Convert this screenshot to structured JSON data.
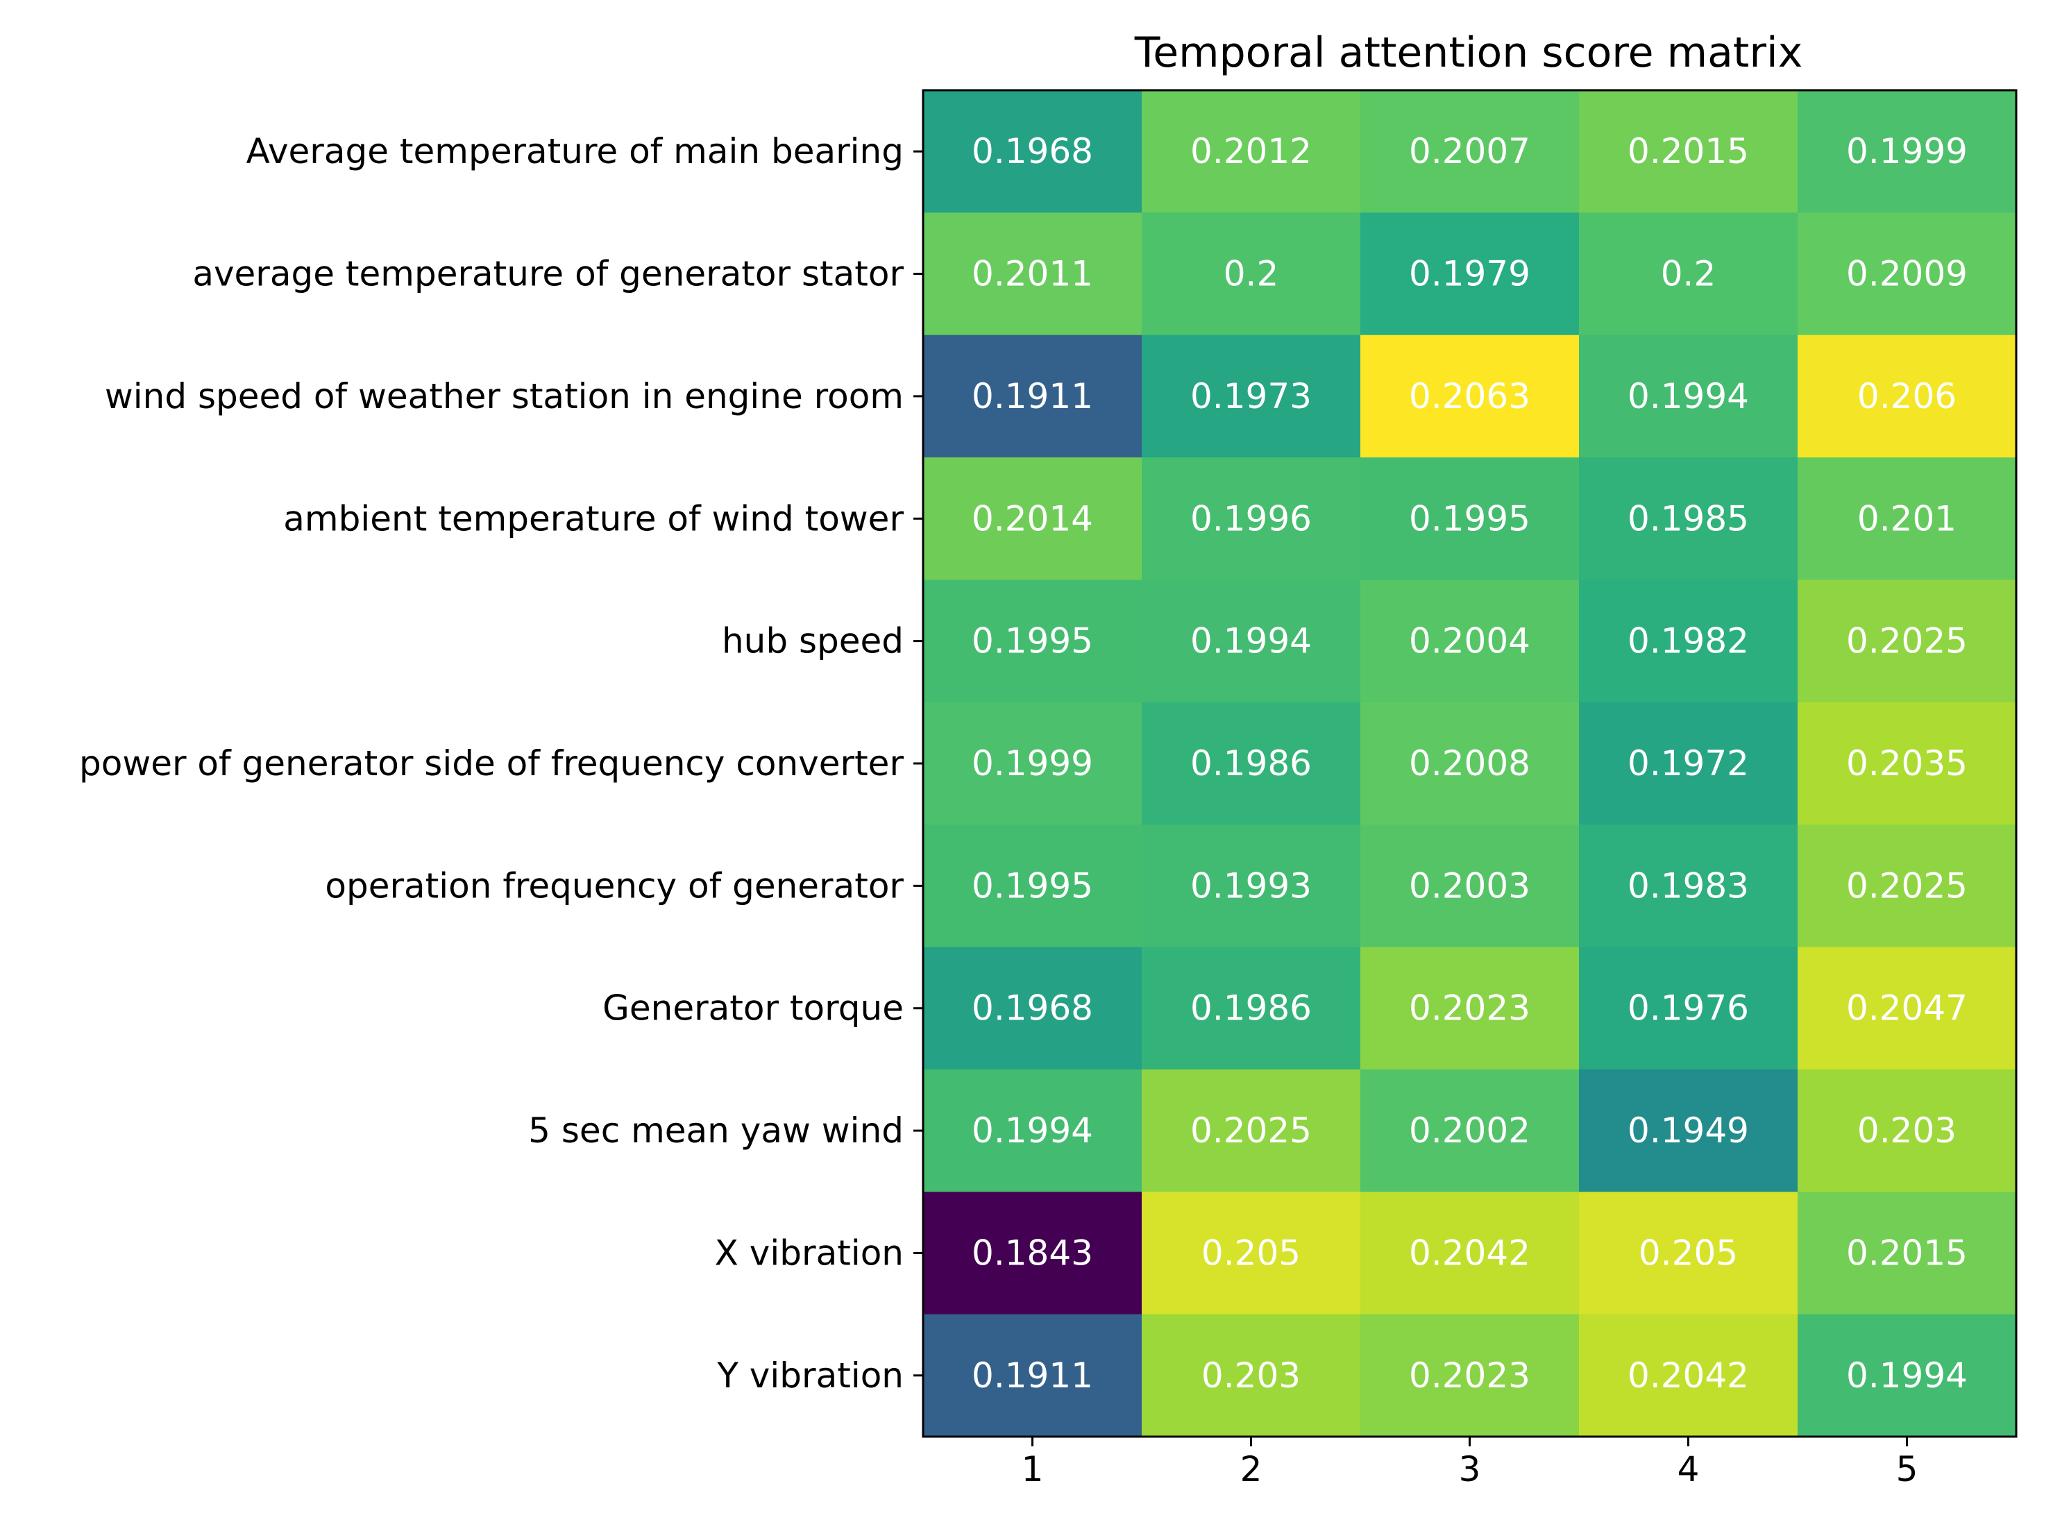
{
  "chart_data": {
    "type": "heatmap",
    "title": "Temporal attention score matrix",
    "xlabel": "",
    "ylabel": "",
    "colormap": "viridis",
    "vmin": 0.1843,
    "vmax": 0.2063,
    "x_categories": [
      "1",
      "2",
      "3",
      "4",
      "5"
    ],
    "y_categories": [
      "Average temperature of main bearing",
      "average temperature of generator stator",
      "wind speed of weather station in engine room",
      "ambient temperature of wind tower",
      "hub speed",
      "power of generator side of frequency converter",
      "operation frequency of generator",
      "Generator torque",
      "5 sec mean yaw wind",
      "X vibration",
      "Y vibration"
    ],
    "values": [
      [
        0.1968,
        0.2012,
        0.2007,
        0.2015,
        0.1999
      ],
      [
        0.2011,
        0.2,
        0.1979,
        0.2,
        0.2009
      ],
      [
        0.1911,
        0.1973,
        0.2063,
        0.1994,
        0.206
      ],
      [
        0.2014,
        0.1996,
        0.1995,
        0.1985,
        0.201
      ],
      [
        0.1995,
        0.1994,
        0.2004,
        0.1982,
        0.2025
      ],
      [
        0.1999,
        0.1986,
        0.2008,
        0.1972,
        0.2035
      ],
      [
        0.1995,
        0.1993,
        0.2003,
        0.1983,
        0.2025
      ],
      [
        0.1968,
        0.1986,
        0.2023,
        0.1976,
        0.2047
      ],
      [
        0.1994,
        0.2025,
        0.2002,
        0.1949,
        0.203
      ],
      [
        0.1843,
        0.205,
        0.2042,
        0.205,
        0.2015
      ],
      [
        0.1911,
        0.203,
        0.2023,
        0.2042,
        0.1994
      ]
    ],
    "cell_labels": [
      [
        "0.1968",
        "0.2012",
        "0.2007",
        "0.2015",
        "0.1999"
      ],
      [
        "0.2011",
        "0.2",
        "0.1979",
        "0.2",
        "0.2009"
      ],
      [
        "0.1911",
        "0.1973",
        "0.2063",
        "0.1994",
        "0.206"
      ],
      [
        "0.2014",
        "0.1996",
        "0.1995",
        "0.1985",
        "0.201"
      ],
      [
        "0.1995",
        "0.1994",
        "0.2004",
        "0.1982",
        "0.2025"
      ],
      [
        "0.1999",
        "0.1986",
        "0.2008",
        "0.1972",
        "0.2035"
      ],
      [
        "0.1995",
        "0.1993",
        "0.2003",
        "0.1983",
        "0.2025"
      ],
      [
        "0.1968",
        "0.1986",
        "0.2023",
        "0.1976",
        "0.2047"
      ],
      [
        "0.1994",
        "0.2025",
        "0.2002",
        "0.1949",
        "0.203"
      ],
      [
        "0.1843",
        "0.205",
        "0.2042",
        "0.205",
        "0.2015"
      ],
      [
        "0.1911",
        "0.203",
        "0.2023",
        "0.2042",
        "0.1994"
      ]
    ],
    "cell_text_color": "#ffffff",
    "frame_color": "#000000"
  }
}
